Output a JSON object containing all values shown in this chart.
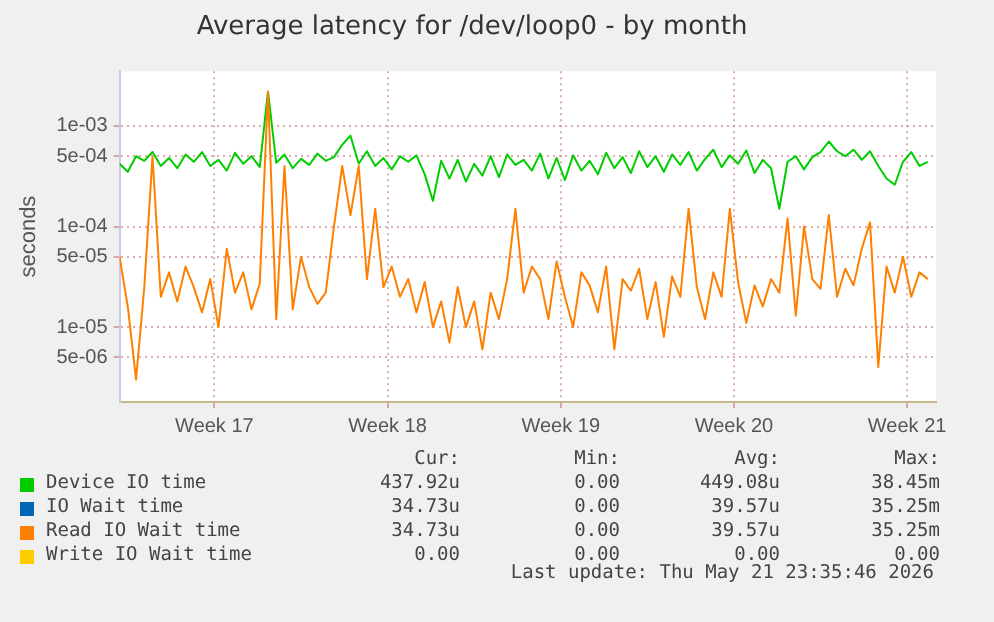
{
  "chart_data": {
    "type": "line",
    "title": "Average latency for /dev/loop0 - by month",
    "ylabel": "seconds",
    "log": "y",
    "grid": true,
    "legend": "bottom",
    "marker": "none",
    "line_style": "solid",
    "xlim": [
      "2026-04-19T00:00",
      "2026-05-22T00:00"
    ],
    "xticks": [
      {
        "value": "2026-04-22T20:00",
        "label": "Week 17"
      },
      {
        "value": "2026-04-29T20:00",
        "label": "Week 18"
      },
      {
        "value": "2026-05-06T20:00",
        "label": "Week 19"
      },
      {
        "value": "2026-05-13T20:00",
        "label": "Week 20"
      },
      {
        "value": "2026-05-20T20:00",
        "label": "Week 21"
      }
    ],
    "ylim": [
      1.8e-06,
      0.0035
    ],
    "yticks": [
      {
        "value": 5e-06,
        "label": "5e-06"
      },
      {
        "value": 1e-05,
        "label": "1e-05"
      },
      {
        "value": 5e-05,
        "label": "5e-05"
      },
      {
        "value": 0.0001,
        "label": "1e-04"
      },
      {
        "value": 0.0005,
        "label": "5e-04"
      },
      {
        "value": 0.001,
        "label": "1e-03"
      }
    ],
    "x": [
      "2026-04-19T00:00",
      "2026-04-19T08:00",
      "2026-04-19T16:00",
      "2026-04-20T00:00",
      "2026-04-20T08:00",
      "2026-04-20T16:00",
      "2026-04-21T00:00",
      "2026-04-21T08:00",
      "2026-04-21T16:00",
      "2026-04-22T00:00",
      "2026-04-22T08:00",
      "2026-04-22T16:00",
      "2026-04-23T00:00",
      "2026-04-23T08:00",
      "2026-04-23T16:00",
      "2026-04-24T00:00",
      "2026-04-24T08:00",
      "2026-04-24T16:00",
      "2026-04-25T00:00",
      "2026-04-25T08:00",
      "2026-04-25T16:00",
      "2026-04-26T00:00",
      "2026-04-26T08:00",
      "2026-04-26T16:00",
      "2026-04-27T00:00",
      "2026-04-27T08:00",
      "2026-04-27T16:00",
      "2026-04-28T00:00",
      "2026-04-28T08:00",
      "2026-04-28T16:00",
      "2026-04-29T00:00",
      "2026-04-29T08:00",
      "2026-04-29T16:00",
      "2026-04-30T00:00",
      "2026-04-30T08:00",
      "2026-04-30T16:00",
      "2026-05-01T00:00",
      "2026-05-01T08:00",
      "2026-05-01T16:00",
      "2026-05-02T00:00",
      "2026-05-02T08:00",
      "2026-05-02T16:00",
      "2026-05-03T00:00",
      "2026-05-03T08:00",
      "2026-05-03T16:00",
      "2026-05-04T00:00",
      "2026-05-04T08:00",
      "2026-05-04T16:00",
      "2026-05-05T00:00",
      "2026-05-05T08:00",
      "2026-05-05T16:00",
      "2026-05-06T00:00",
      "2026-05-06T08:00",
      "2026-05-06T16:00",
      "2026-05-07T00:00",
      "2026-05-07T08:00",
      "2026-05-07T16:00",
      "2026-05-08T00:00",
      "2026-05-08T08:00",
      "2026-05-08T16:00",
      "2026-05-09T00:00",
      "2026-05-09T08:00",
      "2026-05-09T16:00",
      "2026-05-10T00:00",
      "2026-05-10T08:00",
      "2026-05-10T16:00",
      "2026-05-11T00:00",
      "2026-05-11T08:00",
      "2026-05-11T16:00",
      "2026-05-12T00:00",
      "2026-05-12T08:00",
      "2026-05-12T16:00",
      "2026-05-13T00:00",
      "2026-05-13T08:00",
      "2026-05-13T16:00",
      "2026-05-14T00:00",
      "2026-05-14T08:00",
      "2026-05-14T16:00",
      "2026-05-15T00:00",
      "2026-05-15T08:00",
      "2026-05-15T16:00",
      "2026-05-16T00:00",
      "2026-05-16T08:00",
      "2026-05-16T16:00",
      "2026-05-17T00:00",
      "2026-05-17T08:00",
      "2026-05-17T16:00",
      "2026-05-18T00:00",
      "2026-05-18T08:00",
      "2026-05-18T16:00",
      "2026-05-19T00:00",
      "2026-05-19T08:00",
      "2026-05-19T16:00",
      "2026-05-20T00:00",
      "2026-05-20T08:00",
      "2026-05-20T16:00",
      "2026-05-21T00:00",
      "2026-05-21T08:00",
      "2026-05-21T16:00"
    ],
    "series": [
      {
        "name": "Device IO time",
        "color": "#00cc00",
        "values": [
          0.00042,
          0.00035,
          0.0005,
          0.00045,
          0.00055,
          0.0004,
          0.00048,
          0.00038,
          0.00052,
          0.00044,
          0.00055,
          0.0004,
          0.00046,
          0.00036,
          0.00054,
          0.00042,
          0.0005,
          0.00039,
          0.0022,
          0.00043,
          0.00052,
          0.00038,
          0.00047,
          0.00041,
          0.00053,
          0.00045,
          0.00049,
          0.00065,
          0.0008,
          0.00042,
          0.00056,
          0.0004,
          0.00048,
          0.00037,
          0.0005,
          0.00044,
          0.00051,
          0.00033,
          0.00018,
          0.00045,
          0.0003,
          0.00046,
          0.00028,
          0.00042,
          0.00032,
          0.0005,
          0.00031,
          0.00052,
          0.00041,
          0.00046,
          0.00036,
          0.00053,
          0.0003,
          0.00048,
          0.00029,
          0.00051,
          0.00036,
          0.00045,
          0.00033,
          0.00054,
          0.00038,
          0.00049,
          0.00034,
          0.00056,
          0.00039,
          0.0005,
          0.00035,
          0.00052,
          0.00041,
          0.00055,
          0.00036,
          0.00047,
          0.00058,
          0.00039,
          0.00051,
          0.00042,
          0.00057,
          0.00034,
          0.00046,
          0.00038,
          0.00015,
          0.00044,
          0.0005,
          0.00037,
          0.00049,
          0.00055,
          0.0007,
          0.00056,
          0.0005,
          0.00058,
          0.00046,
          0.00056,
          0.0004,
          0.0003,
          0.00026,
          0.00044,
          0.00055,
          0.0004,
          0.00044
        ]
      },
      {
        "name": "IO Wait time",
        "color": "#0066b3",
        "values": [
          null,
          null,
          null,
          null,
          null,
          null,
          null,
          null,
          null,
          null,
          null,
          null,
          null,
          null,
          null,
          null,
          null,
          null,
          null,
          null,
          null,
          null,
          null,
          null,
          null,
          null,
          null,
          null,
          null,
          null,
          null,
          null,
          null,
          null,
          null,
          null,
          null,
          null,
          null,
          null,
          null,
          null,
          null,
          null,
          null,
          null,
          null,
          null,
          null,
          null,
          null,
          null,
          null,
          null,
          null,
          null,
          null,
          null,
          null,
          null,
          null,
          null,
          null,
          null,
          null,
          null,
          null,
          null,
          null,
          null,
          null,
          null,
          null,
          null,
          null,
          null,
          null,
          null,
          null,
          null,
          null,
          null,
          null,
          null,
          null,
          null,
          null,
          null,
          null,
          null,
          null,
          null,
          null,
          null,
          null,
          null,
          null,
          null,
          null
        ]
      },
      {
        "name": "Read IO Wait time",
        "color": "#ff8000",
        "values": [
          5e-05,
          1.6e-05,
          3e-06,
          2.5e-05,
          0.0005,
          2e-05,
          3.5e-05,
          1.8e-05,
          4e-05,
          2.5e-05,
          1.4e-05,
          3e-05,
          1e-05,
          6e-05,
          2.2e-05,
          3.5e-05,
          1.5e-05,
          2.7e-05,
          0.0022,
          1.2e-05,
          0.0004,
          1.5e-05,
          5e-05,
          2.5e-05,
          1.7e-05,
          2.2e-05,
          0.0001,
          0.0004,
          0.00013,
          0.0004,
          3e-05,
          0.00015,
          2.5e-05,
          4e-05,
          2e-05,
          3e-05,
          1.4e-05,
          2.8e-05,
          1e-05,
          1.8e-05,
          7e-06,
          2.5e-05,
          1e-05,
          1.8e-05,
          6e-06,
          2.2e-05,
          1.2e-05,
          3e-05,
          0.00015,
          2.2e-05,
          4e-05,
          3e-05,
          1.2e-05,
          4.5e-05,
          2e-05,
          1e-05,
          3.5e-05,
          2.6e-05,
          1.4e-05,
          4e-05,
          6e-06,
          3e-05,
          2.3e-05,
          3.8e-05,
          1.2e-05,
          2.8e-05,
          8e-06,
          3.2e-05,
          2e-05,
          0.00015,
          2.5e-05,
          1.2e-05,
          3.5e-05,
          2e-05,
          0.00015,
          2.8e-05,
          1.1e-05,
          2.6e-05,
          1.6e-05,
          3e-05,
          2.2e-05,
          0.00012,
          1.3e-05,
          0.0001,
          3e-05,
          2.4e-05,
          0.00013,
          2e-05,
          3.8e-05,
          2.6e-05,
          6e-05,
          0.00011,
          4e-06,
          4e-05,
          2.2e-05,
          5e-05,
          2e-05,
          3.5e-05,
          3e-05
        ]
      },
      {
        "name": "Write IO Wait time",
        "color": "#ffcc00",
        "values": [
          null,
          null,
          null,
          null,
          null,
          null,
          null,
          null,
          null,
          null,
          null,
          null,
          null,
          null,
          null,
          null,
          null,
          null,
          null,
          null,
          null,
          null,
          null,
          null,
          null,
          null,
          null,
          null,
          null,
          null,
          null,
          null,
          null,
          null,
          null,
          null,
          null,
          null,
          null,
          null,
          null,
          null,
          null,
          null,
          null,
          null,
          null,
          null,
          null,
          null,
          null,
          null,
          null,
          null,
          null,
          null,
          null,
          null,
          null,
          null,
          null,
          null,
          null,
          null,
          null,
          null,
          null,
          null,
          null,
          null,
          null,
          null,
          null,
          null,
          null,
          null,
          null,
          null,
          null,
          null,
          null,
          null,
          null,
          null,
          null,
          null,
          null,
          null,
          null,
          null,
          null,
          null,
          null,
          null,
          null,
          null,
          null,
          null,
          null
        ]
      }
    ],
    "annotations": [
      "Cur:",
      "Min:",
      "Avg:",
      "Max:",
      "437.92u",
      "0.00",
      "449.08u",
      "38.45m",
      "34.73u",
      "0.00",
      "39.57u",
      "35.25m",
      "34.73u",
      "0.00",
      "39.57u",
      "35.25m",
      "0.00",
      "0.00",
      "0.00",
      "0.00",
      "Last update: Thu May 21 23:35:46 2026"
    ]
  }
}
